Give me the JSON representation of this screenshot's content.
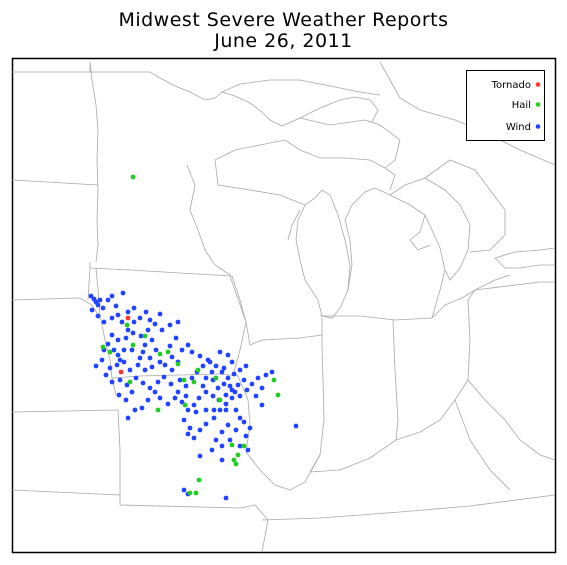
{
  "title": "Midwest Severe Weather Reports",
  "subtitle": "June 26, 2011",
  "legend": [
    {
      "label": "Tornado",
      "color": "#ff3333"
    },
    {
      "label": "Hail",
      "color": "#22cc22"
    },
    {
      "label": "Wind",
      "color": "#2244ff"
    }
  ],
  "report_counts": {
    "tornado": 2,
    "hail": 27,
    "wind": 179
  }
}
